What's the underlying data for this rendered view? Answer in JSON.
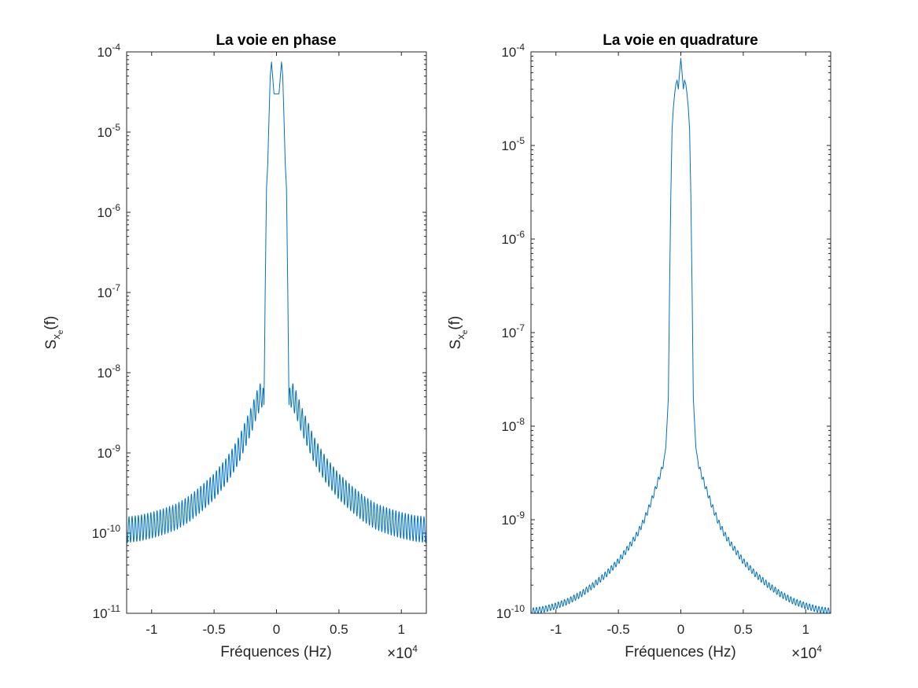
{
  "chart_data": [
    {
      "type": "line",
      "title": "La voie en phase",
      "xlabel": "Fréquences (Hz)",
      "ylabel": "S_xe(f)",
      "ylabel_parts": {
        "main": "S",
        "sub": "x",
        "subsub": "e",
        "tail": "(f)"
      },
      "x_exponent_label": "×10",
      "x_exponent_power": "4",
      "xlim": [
        -12000,
        12000
      ],
      "ylim": [
        1e-11,
        0.0001
      ],
      "yscale": "log",
      "grid": false,
      "x_ticks": [
        -10000,
        -5000,
        0,
        5000,
        10000
      ],
      "x_tick_labels": [
        "-1",
        "-0.5",
        "0",
        "0.5",
        "1"
      ],
      "y_ticks": [
        1e-11,
        1e-10,
        1e-09,
        1e-08,
        1e-07,
        1e-06,
        1e-05,
        0.0001
      ],
      "y_tick_labels": [
        {
          "base": "10",
          "exp": "-11"
        },
        {
          "base": "10",
          "exp": "-10"
        },
        {
          "base": "10",
          "exp": "-9"
        },
        {
          "base": "10",
          "exp": "-8"
        },
        {
          "base": "10",
          "exp": "-7"
        },
        {
          "base": "10",
          "exp": "-6"
        },
        {
          "base": "10",
          "exp": "-5"
        },
        {
          "base": "10",
          "exp": "-4"
        }
      ],
      "series": [
        {
          "color": "#0072BD",
          "x": [
            -12000,
            -11000,
            -10000,
            -9000,
            -8000,
            -7000,
            -6000,
            -5000,
            -4000,
            -3500,
            -3000,
            -2500,
            -2000,
            -1600,
            -1200,
            -1000,
            -900,
            -800,
            -700,
            -600,
            -500,
            -400,
            -200,
            0,
            200,
            400,
            500,
            600,
            700,
            800,
            900,
            1000,
            1200,
            1600,
            2000,
            2500,
            3000,
            3500,
            4000,
            5000,
            6000,
            7000,
            8000,
            9000,
            10000,
            11000,
            12000
          ],
          "y": [
            1.1e-10,
            1.15e-10,
            1.25e-10,
            1.4e-10,
            1.6e-10,
            2e-10,
            2.7e-10,
            3.8e-10,
            6e-10,
            8e-10,
            1.1e-09,
            1.7e-09,
            2.6e-09,
            4e-09,
            5.5e-09,
            4e-09,
            1.2e-07,
            2e-06,
            4e-06,
            1.5e-05,
            5e-05,
            7.5e-05,
            3e-05,
            3e-05,
            3e-05,
            7.5e-05,
            5e-05,
            1.5e-05,
            4e-06,
            2e-06,
            1.2e-07,
            4e-09,
            5.5e-09,
            4e-09,
            2.6e-09,
            1.7e-09,
            1.1e-09,
            8e-10,
            6e-10,
            3.8e-10,
            2.7e-10,
            2e-10,
            1.6e-10,
            1.4e-10,
            1.25e-10,
            1.15e-10,
            1.1e-10
          ],
          "ripple_period": 250,
          "ripple_factor": 1.45,
          "ripple_range": [
            1000,
            12000
          ]
        }
      ]
    },
    {
      "type": "line",
      "title": "La voie en quadrature",
      "xlabel": "Fréquences (Hz)",
      "ylabel": "S_xe(f)",
      "ylabel_parts": {
        "main": "S",
        "sub": "x",
        "subsub": "e",
        "tail": "(f)"
      },
      "x_exponent_label": "×10",
      "x_exponent_power": "4",
      "xlim": [
        -12000,
        12000
      ],
      "ylim": [
        1e-10,
        0.0001
      ],
      "yscale": "log",
      "grid": false,
      "x_ticks": [
        -10000,
        -5000,
        0,
        5000,
        10000
      ],
      "x_tick_labels": [
        "-1",
        "-0.5",
        "0",
        "0.5",
        "1"
      ],
      "y_ticks": [
        1e-10,
        1e-09,
        1e-08,
        1e-07,
        1e-06,
        1e-05,
        0.0001
      ],
      "y_tick_labels": [
        {
          "base": "10",
          "exp": "-10"
        },
        {
          "base": "10",
          "exp": "-9"
        },
        {
          "base": "10",
          "exp": "-8"
        },
        {
          "base": "10",
          "exp": "-7"
        },
        {
          "base": "10",
          "exp": "-6"
        },
        {
          "base": "10",
          "exp": "-5"
        },
        {
          "base": "10",
          "exp": "-4"
        }
      ],
      "series": [
        {
          "color": "#0072BD",
          "x": [
            -12000,
            -11000,
            -10000,
            -9000,
            -8000,
            -7000,
            -6000,
            -5000,
            -4000,
            -3500,
            -3000,
            -2500,
            -2000,
            -1600,
            -1400,
            -1200,
            -1000,
            -900,
            -800,
            -700,
            -600,
            -500,
            -400,
            -300,
            -200,
            -100,
            0,
            100,
            200,
            300,
            400,
            500,
            600,
            700,
            800,
            900,
            1000,
            1200,
            1400,
            1600,
            2000,
            2500,
            3000,
            3500,
            4000,
            5000,
            6000,
            7000,
            8000,
            9000,
            10000,
            11000,
            12000
          ],
          "y": [
            1.05e-10,
            1.1e-10,
            1.2e-10,
            1.35e-10,
            1.6e-10,
            2e-10,
            2.6e-10,
            3.6e-10,
            5.5e-10,
            7e-10,
            9.5e-10,
            1.4e-09,
            2.2e-09,
            3.2e-09,
            4e-09,
            6e-09,
            2e-08,
            3e-07,
            3e-06,
            1.5e-05,
            2.5e-05,
            3.5e-05,
            4.5e-05,
            5e-05,
            4e-05,
            6e-05,
            8.5e-05,
            6e-05,
            4e-05,
            5e-05,
            4.5e-05,
            3.5e-05,
            2.5e-05,
            1.5e-05,
            3e-06,
            3e-07,
            2e-08,
            6e-09,
            4e-09,
            3.2e-09,
            2.2e-09,
            1.4e-09,
            9.5e-10,
            7e-10,
            5.5e-10,
            3.6e-10,
            2.6e-10,
            2e-10,
            1.6e-10,
            1.35e-10,
            1.2e-10,
            1.1e-10,
            1.05e-10
          ],
          "ripple_period": 250,
          "ripple_factor": 1.08,
          "ripple_range": [
            1400,
            12000
          ]
        }
      ]
    }
  ]
}
